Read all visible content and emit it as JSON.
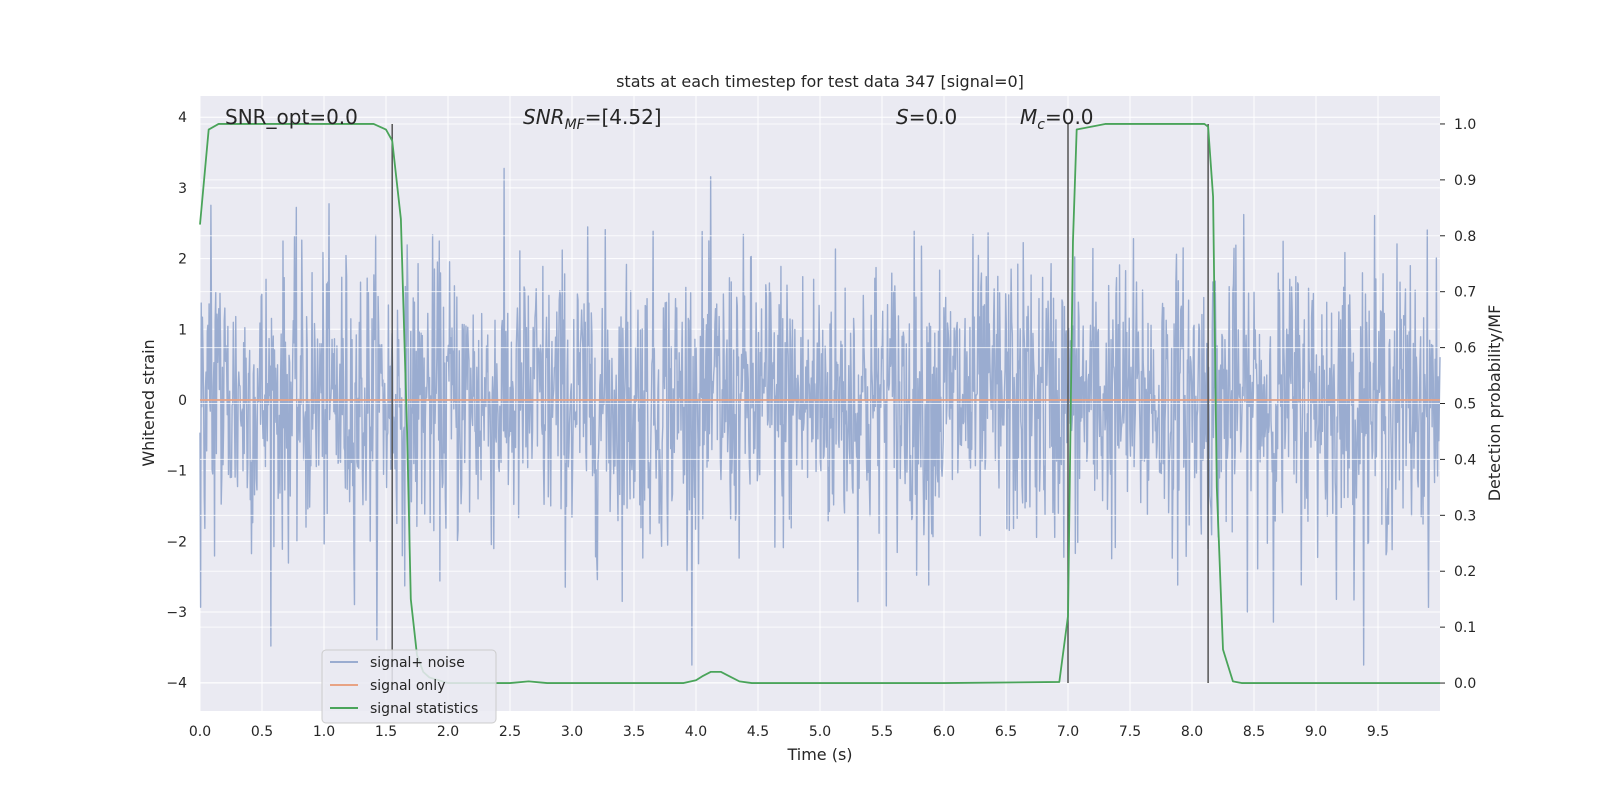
{
  "chart_data": {
    "type": "line",
    "title": "stats at each timestep for test data 347 [signal=0]",
    "xlabel": "Time (s)",
    "ylabel": "Whitened strain",
    "y2label": "Detection probability/MF",
    "xlim": [
      0,
      10
    ],
    "ylim": [
      -4.4,
      4.3
    ],
    "y2lim": [
      -0.05,
      1.05
    ],
    "xticks": [
      "0.0",
      "0.5",
      "1.0",
      "1.5",
      "2.0",
      "2.5",
      "3.0",
      "3.5",
      "4.0",
      "4.5",
      "5.0",
      "5.5",
      "6.0",
      "6.5",
      "7.0",
      "7.5",
      "8.0",
      "8.5",
      "9.0",
      "9.5"
    ],
    "yticks": [
      "−4",
      "−3",
      "−2",
      "−1",
      "0",
      "1",
      "2",
      "3",
      "4"
    ],
    "y2ticks": [
      "0.0",
      "0.1",
      "0.2",
      "0.3",
      "0.4",
      "0.5",
      "0.6",
      "0.7",
      "0.8",
      "0.9",
      "1.0"
    ],
    "grid": true,
    "legend_position": "lower-left",
    "annotations": {
      "snr_opt": "SNR_opt=0.0",
      "snr_mf_main": "SNR",
      "snr_mf_sub": "MF",
      "snr_mf_val": "=[4.52]",
      "s_main": "S",
      "s_val": "=0.0",
      "mc_main": "M",
      "mc_sub": "c",
      "mc_val": "=0.0"
    },
    "vertical_lines_x": [
      1.55,
      7.0,
      8.13
    ],
    "series": [
      {
        "name": "signal+ noise",
        "color": "#9aacd0",
        "kind": "noise",
        "sample_count": 2048,
        "typical_amplitude": 1.0,
        "y_extent": [
          -3.75,
          3.8
        ]
      },
      {
        "name": "signal only",
        "color": "#e8a384",
        "x": [
          0,
          10
        ],
        "y": [
          0,
          0
        ]
      },
      {
        "name": "signal statistics",
        "color": "#4aa45a",
        "axis": "right",
        "x": [
          0,
          0.07,
          0.15,
          0.3,
          0.6,
          1.0,
          1.4,
          1.5,
          1.55,
          1.62,
          1.67,
          1.7,
          1.75,
          1.8,
          1.85,
          2.0,
          2.5,
          2.65,
          2.8,
          3.0,
          3.5,
          3.9,
          4.0,
          4.05,
          4.12,
          4.2,
          4.27,
          4.35,
          4.45,
          5.0,
          6.0,
          6.93,
          7.0,
          7.04,
          7.07,
          7.3,
          7.7,
          8.1,
          8.13,
          8.17,
          8.2,
          8.25,
          8.33,
          8.4,
          9.0,
          9.5,
          10.0
        ],
        "y": [
          0.82,
          0.99,
          1.0,
          1.0,
          1.0,
          1.0,
          1.0,
          0.99,
          0.97,
          0.83,
          0.45,
          0.15,
          0.05,
          0.02,
          0.01,
          0.0,
          0.0,
          0.003,
          0.0,
          0.0,
          0.0,
          0.0,
          0.005,
          0.012,
          0.02,
          0.02,
          0.012,
          0.003,
          0.0,
          0.0,
          0.0,
          0.002,
          0.12,
          0.79,
          0.99,
          1.0,
          1.0,
          1.0,
          0.995,
          0.87,
          0.35,
          0.06,
          0.003,
          0.0,
          0.0,
          0.0,
          0.0
        ]
      }
    ]
  },
  "legend": {
    "items": [
      {
        "label": "signal+ noise",
        "color": "#9aacd0"
      },
      {
        "label": "signal only",
        "color": "#e8a384"
      },
      {
        "label": "signal statistics",
        "color": "#4aa45a"
      }
    ]
  },
  "colors": {
    "plot_background": "#eaeaf2",
    "grid": "#ffffff",
    "vertical_line": "#555555"
  }
}
